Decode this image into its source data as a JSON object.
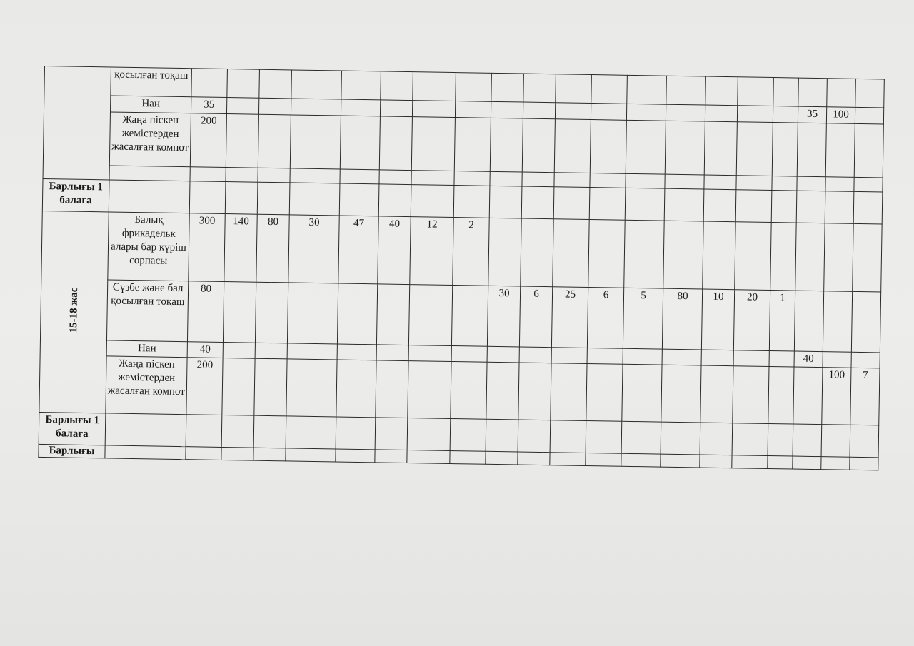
{
  "table": {
    "groups": [
      {
        "age": "",
        "rows": [
          {
            "name": "қосылған тоқаш",
            "cells": [
              "",
              "",
              "",
              "",
              "",
              "",
              "",
              "",
              "",
              "",
              "",
              "",
              "",
              "",
              "",
              "",
              "",
              "",
              "",
              ""
            ]
          },
          {
            "name": "Нан",
            "cells": [
              "35",
              "",
              "",
              "",
              "",
              "",
              "",
              "",
              "",
              "",
              "",
              "",
              "",
              "",
              "",
              "",
              "",
              "35",
              "100",
              ""
            ]
          },
          {
            "name": "Жаңа піскен жемістерден жасалған компот",
            "cells": [
              "200",
              "",
              "",
              "",
              "",
              "",
              "",
              "",
              "",
              "",
              "",
              "",
              "",
              "",
              "",
              "",
              "",
              "",
              "",
              ""
            ]
          },
          {
            "name": "",
            "cells": [
              "",
              "",
              "",
              "",
              "",
              "",
              "",
              "",
              "",
              "",
              "",
              "",
              "",
              "",
              "",
              "",
              "",
              "",
              "",
              ""
            ]
          }
        ],
        "total_label": "Барлығы 1 балаға"
      },
      {
        "age": "15-18 жас",
        "rows": [
          {
            "name": "Балық фрикадельк алары бар күріш сорпасы",
            "cells": [
              "300",
              "140",
              "80",
              "30",
              "47",
              "40",
              "12",
              "2",
              "",
              "",
              "",
              "",
              "",
              "",
              "",
              "",
              "",
              "",
              "",
              ""
            ]
          },
          {
            "name": "Сүзбе және бал қосылған тоқаш",
            "cells": [
              "80",
              "",
              "",
              "",
              "",
              "",
              "",
              "",
              "30",
              "6",
              "25",
              "6",
              "5",
              "80",
              "10",
              "20",
              "1",
              "",
              "",
              ""
            ]
          },
          {
            "name": "Нан",
            "cells": [
              "40",
              "",
              "",
              "",
              "",
              "",
              "",
              "",
              "",
              "",
              "",
              "",
              "",
              "",
              "",
              "",
              "",
              "40",
              "",
              ""
            ]
          },
          {
            "name": "Жаңа піскен жемістерден жасалған компот",
            "cells": [
              "200",
              "",
              "",
              "",
              "",
              "",
              "",
              "",
              "",
              "",
              "",
              "",
              "",
              "",
              "",
              "",
              "",
              "",
              "100",
              "7"
            ]
          }
        ],
        "total_label": "Барлығы 1 балаға"
      }
    ],
    "grand_total_label": "Барлығы"
  }
}
